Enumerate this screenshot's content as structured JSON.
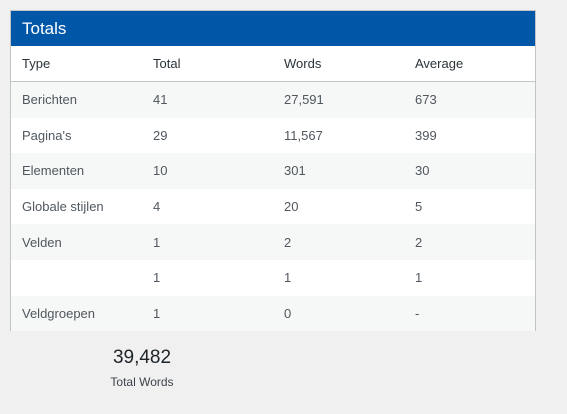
{
  "panel": {
    "title": "Totals",
    "columns": [
      "Type",
      "Total",
      "Words",
      "Average"
    ],
    "rows": [
      [
        "Berichten",
        "41",
        "27,591",
        "673"
      ],
      [
        "Pagina's",
        "29",
        "11,567",
        "399"
      ],
      [
        "Elementen",
        "10",
        "301",
        "30"
      ],
      [
        "Globale stijlen",
        "4",
        "20",
        "5"
      ],
      [
        "Velden",
        "1",
        "2",
        "2"
      ],
      [
        "",
        "1",
        "1",
        "1"
      ],
      [
        "Veldgroepen",
        "1",
        "0",
        "-"
      ]
    ]
  },
  "summary": {
    "value": "39,482",
    "label": "Total Words"
  }
}
